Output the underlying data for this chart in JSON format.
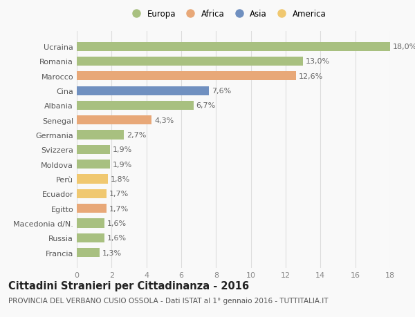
{
  "categories": [
    "Francia",
    "Russia",
    "Macedonia d/N.",
    "Egitto",
    "Ecuador",
    "Perù",
    "Moldova",
    "Svizzera",
    "Germania",
    "Senegal",
    "Albania",
    "Cina",
    "Marocco",
    "Romania",
    "Ucraina"
  ],
  "values": [
    1.3,
    1.6,
    1.6,
    1.7,
    1.7,
    1.8,
    1.9,
    1.9,
    2.7,
    4.3,
    6.7,
    7.6,
    12.6,
    13.0,
    18.0
  ],
  "labels": [
    "1,3%",
    "1,6%",
    "1,6%",
    "1,7%",
    "1,7%",
    "1,8%",
    "1,9%",
    "1,9%",
    "2,7%",
    "4,3%",
    "6,7%",
    "7,6%",
    "12,6%",
    "13,0%",
    "18,0%"
  ],
  "colors": [
    "#a8c080",
    "#a8c080",
    "#a8c080",
    "#e8a878",
    "#f0c870",
    "#f0c870",
    "#a8c080",
    "#a8c080",
    "#a8c080",
    "#e8a878",
    "#a8c080",
    "#7090c0",
    "#e8a878",
    "#a8c080",
    "#a8c080"
  ],
  "continent_colors": {
    "Europa": "#a8c080",
    "Africa": "#e8a878",
    "Asia": "#7090c0",
    "America": "#f0c870"
  },
  "xlim": [
    0,
    18
  ],
  "xticks": [
    0,
    2,
    4,
    6,
    8,
    10,
    12,
    14,
    16,
    18
  ],
  "title": "Cittadini Stranieri per Cittadinanza - 2016",
  "subtitle": "PROVINCIA DEL VERBANO CUSIO OSSOLA - Dati ISTAT al 1° gennaio 2016 - TUTTITALIA.IT",
  "background_color": "#f9f9f9",
  "grid_color": "#dddddd",
  "bar_height": 0.62,
  "label_fontsize": 8.0,
  "tick_fontsize": 8.0,
  "title_fontsize": 10.5,
  "subtitle_fontsize": 7.5
}
